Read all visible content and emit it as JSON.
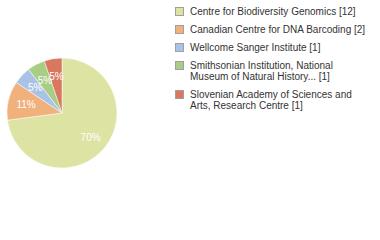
{
  "chart_data": {
    "type": "pie",
    "categories": [
      "Centre for Biodiversity Genomics [12]",
      "Canadian Centre for DNA Barcoding [2]",
      "Wellcome Sanger Institute [1]",
      "Smithsonian Institution, National Museum of Natural History... [1]",
      "Slovenian Academy of Sciences and Arts, Research Centre [1]"
    ],
    "values": [
      70,
      11,
      5,
      5,
      5
    ],
    "value_labels": [
      "70%",
      "11%",
      "5%",
      "5%",
      "5%"
    ],
    "colors": [
      "#dde3a3",
      "#f0b17c",
      "#a9c3e6",
      "#a9cd85",
      "#d9775f"
    ],
    "data_labels": true,
    "legend": "right"
  }
}
